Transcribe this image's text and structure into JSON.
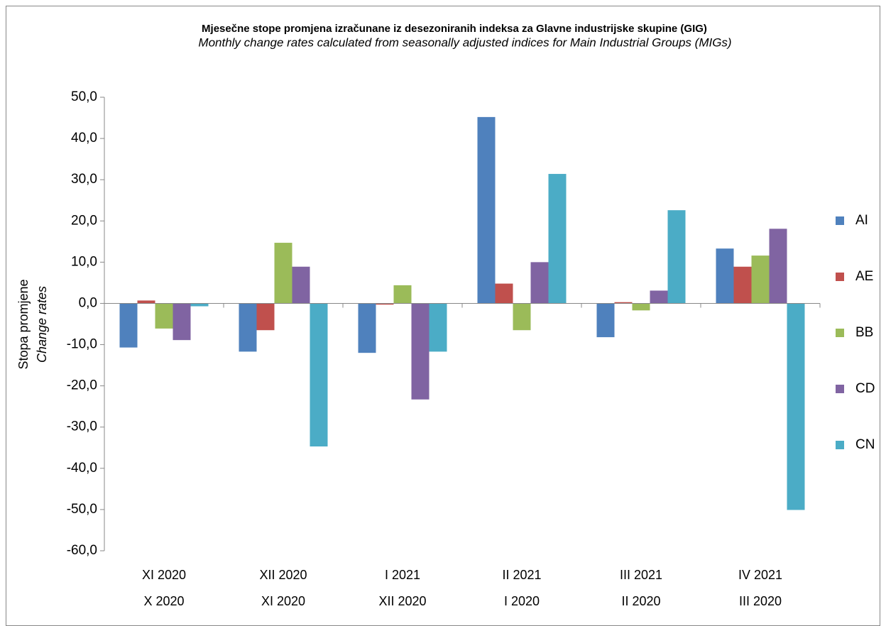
{
  "chart_data": {
    "type": "bar",
    "title": "Mjesečne stope promjena izračunane iz desezoniranih indeksa za Glavne industrijske skupine (GIG)",
    "subtitle": "Monthly change rates calculated from seasonally adjusted indices for Main Industrial Groups (MIGs)",
    "y_label": [
      "Stopa promjene",
      "Change rates"
    ],
    "categories": [
      [
        "XI 2020",
        "X 2020"
      ],
      [
        "XII 2020",
        "XI 2020"
      ],
      [
        "I 2021",
        "XII 2020"
      ],
      [
        "II 2021",
        "I 2020"
      ],
      [
        "III 2021",
        "II 2020"
      ],
      [
        "IV 2021",
        "III 2020"
      ]
    ],
    "series": [
      {
        "name": "AI",
        "color": "#4f81bd",
        "values": [
          -10.7,
          -11.7,
          -12.0,
          45.2,
          -8.2,
          13.3
        ]
      },
      {
        "name": "AE",
        "color": "#c0504d",
        "values": [
          0.7,
          -6.5,
          -0.3,
          4.8,
          0.3,
          8.9
        ]
      },
      {
        "name": "BB",
        "color": "#9bbb59",
        "values": [
          -6.1,
          14.7,
          4.4,
          -6.5,
          -1.7,
          11.6
        ]
      },
      {
        "name": "CD",
        "color": "#8064a2",
        "values": [
          -8.9,
          8.9,
          -23.3,
          10.0,
          3.1,
          18.1
        ]
      },
      {
        "name": "CN",
        "color": "#4bacc6",
        "values": [
          -0.7,
          -34.7,
          -11.7,
          31.4,
          22.6,
          -50.1
        ]
      }
    ],
    "ylim": [
      -60,
      50
    ],
    "yticks": [
      {
        "value": -60,
        "label": "-60,0"
      },
      {
        "value": -50,
        "label": "-50,0"
      },
      {
        "value": -40,
        "label": "-40,0"
      },
      {
        "value": -30,
        "label": "-30,0"
      },
      {
        "value": -20,
        "label": "-20,0"
      },
      {
        "value": -10,
        "label": "-10,0"
      },
      {
        "value": 0,
        "label": "0,0"
      },
      {
        "value": 10,
        "label": "10,0"
      },
      {
        "value": 20,
        "label": "20,0"
      },
      {
        "value": 30,
        "label": "30,0"
      },
      {
        "value": 40,
        "label": "40,0"
      },
      {
        "value": 50,
        "label": "50,0"
      }
    ],
    "grid": false,
    "legend": "right"
  }
}
